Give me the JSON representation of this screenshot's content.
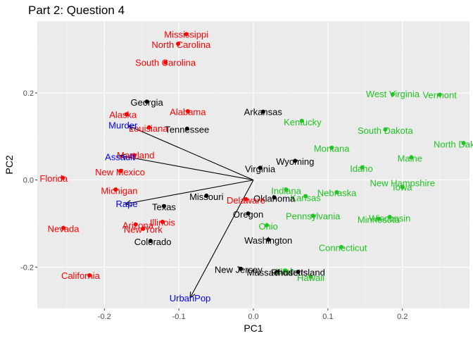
{
  "chart_data": {
    "type": "scatter",
    "title": "Part 2: Question 4",
    "xlabel": "PC1",
    "ylabel": "PC2",
    "xlim": [
      -0.29,
      0.29
    ],
    "ylim": [
      -0.295,
      0.365
    ],
    "xticks": [
      -0.2,
      -0.1,
      0.0,
      0.1,
      0.2
    ],
    "xtick_labels": [
      "-0.2",
      "-0.1",
      "0.0",
      "0.1",
      "0.2"
    ],
    "yticks": [
      -0.2,
      0.0,
      0.2
    ],
    "ytick_labels": [
      "-0.2",
      "0.0",
      "0.2"
    ],
    "grid": true,
    "legend": "none",
    "colors": {
      "red": "#ff0000",
      "black": "#000000",
      "green": "#22c322",
      "blue": "#0000ff",
      "panel": "#ebebeb",
      "grid_major": "#ffffff",
      "grid_minor": "#f5f5f5"
    },
    "arrow_origin": [
      0.0,
      0.0
    ],
    "arrows": [
      {
        "name": "Murder",
        "x": -0.168,
        "y": 0.125,
        "tx": -0.175,
        "ty": 0.126,
        "color": "blue"
      },
      {
        "name": "Assault",
        "x": -0.179,
        "y": 0.056,
        "tx": -0.179,
        "ty": 0.054,
        "color": "blue"
      },
      {
        "name": "Rape",
        "x": -0.172,
        "y": -0.055,
        "tx": -0.17,
        "ty": -0.054,
        "color": "blue"
      },
      {
        "name": "UrbanPop",
        "x": -0.085,
        "y": -0.271,
        "tx": -0.085,
        "ty": -0.271,
        "color": "blue"
      }
    ],
    "points": [
      {
        "label": "Mississippi",
        "x": -0.09,
        "y": 0.335,
        "tx": -0.09,
        "ty": 0.335,
        "color": "red"
      },
      {
        "label": "North Carolina",
        "x": -0.101,
        "y": 0.313,
        "tx": -0.097,
        "ty": 0.312,
        "color": "red"
      },
      {
        "label": "South Carolina",
        "x": -0.118,
        "y": 0.27,
        "tx": -0.118,
        "ty": 0.27,
        "color": "red"
      },
      {
        "label": "Georgia",
        "x": -0.143,
        "y": 0.18,
        "tx": -0.143,
        "ty": 0.179,
        "color": "black"
      },
      {
        "label": "Alabama",
        "x": -0.088,
        "y": 0.158,
        "tx": -0.088,
        "ty": 0.157,
        "color": "red"
      },
      {
        "label": "Alaska",
        "x": -0.17,
        "y": 0.151,
        "tx": -0.175,
        "ty": 0.151,
        "color": "red"
      },
      {
        "label": "Arkansas",
        "x": 0.013,
        "y": 0.157,
        "tx": 0.013,
        "ty": 0.157,
        "color": "black"
      },
      {
        "label": "Louisiana",
        "x": -0.14,
        "y": 0.121,
        "tx": -0.141,
        "ty": 0.119,
        "color": "red"
      },
      {
        "label": "Tennessee",
        "x": -0.089,
        "y": 0.118,
        "tx": -0.089,
        "ty": 0.117,
        "color": "black"
      },
      {
        "label": "Kentucky",
        "x": 0.065,
        "y": 0.136,
        "tx": 0.066,
        "ty": 0.134,
        "color": "green"
      },
      {
        "label": "West Virginia",
        "x": 0.187,
        "y": 0.197,
        "tx": 0.187,
        "ty": 0.198,
        "color": "green"
      },
      {
        "label": "Vermont",
        "x": 0.25,
        "y": 0.196,
        "tx": 0.25,
        "ty": 0.196,
        "color": "green"
      },
      {
        "label": "South Dakota",
        "x": 0.177,
        "y": 0.116,
        "tx": 0.177,
        "ty": 0.114,
        "color": "green"
      },
      {
        "label": "North Dakota",
        "x": 0.282,
        "y": 0.085,
        "tx": 0.278,
        "ty": 0.083,
        "color": "green"
      },
      {
        "label": "Montana",
        "x": 0.105,
        "y": 0.074,
        "tx": 0.105,
        "ty": 0.073,
        "color": "green"
      },
      {
        "label": "Maine",
        "x": 0.212,
        "y": 0.052,
        "tx": 0.21,
        "ty": 0.05,
        "color": "green"
      },
      {
        "label": "Wyoming",
        "x": 0.056,
        "y": 0.044,
        "tx": 0.056,
        "ty": 0.043,
        "color": "black"
      },
      {
        "label": "Maryland",
        "x": -0.16,
        "y": 0.057,
        "tx": -0.158,
        "ty": 0.058,
        "color": "red"
      },
      {
        "label": "Idaho",
        "x": 0.146,
        "y": 0.029,
        "tx": 0.145,
        "ty": 0.027,
        "color": "green"
      },
      {
        "label": "Virginia",
        "x": 0.009,
        "y": 0.028,
        "tx": 0.009,
        "ty": 0.026,
        "color": "black"
      },
      {
        "label": "New Mexico",
        "x": -0.178,
        "y": 0.021,
        "tx": -0.179,
        "ty": 0.019,
        "color": "red"
      },
      {
        "label": "Florida",
        "x": -0.256,
        "y": 0.005,
        "tx": -0.268,
        "ty": 0.004,
        "color": "red"
      },
      {
        "label": "New Hampshire",
        "x": 0.2,
        "y": -0.016,
        "tx": 0.2,
        "ty": -0.006,
        "color": "green"
      },
      {
        "label": "Iowa",
        "x": 0.2,
        "y": -0.016,
        "tx": 0.2,
        "ty": -0.016,
        "color": "green"
      },
      {
        "label": "Michigan",
        "x": -0.185,
        "y": -0.022,
        "tx": -0.18,
        "ty": -0.024,
        "color": "red"
      },
      {
        "label": "Indiana",
        "x": 0.044,
        "y": -0.022,
        "tx": 0.044,
        "ty": -0.024,
        "color": "green"
      },
      {
        "label": "Nebraska",
        "x": 0.112,
        "y": -0.028,
        "tx": 0.112,
        "ty": -0.029,
        "color": "green"
      },
      {
        "label": "Kansas",
        "x": 0.07,
        "y": -0.037,
        "tx": 0.07,
        "ty": -0.04,
        "color": "green"
      },
      {
        "label": "Missouri",
        "x": -0.063,
        "y": -0.036,
        "tx": -0.063,
        "ty": -0.038,
        "color": "black"
      },
      {
        "label": "Oklahoma",
        "x": 0.028,
        "y": -0.04,
        "tx": 0.028,
        "ty": -0.042,
        "color": "black"
      },
      {
        "label": "Delaware",
        "x": -0.01,
        "y": -0.044,
        "tx": -0.01,
        "ty": -0.046,
        "color": "red"
      },
      {
        "label": "Texas",
        "x": -0.12,
        "y": -0.06,
        "tx": -0.12,
        "ty": -0.061,
        "color": "black"
      },
      {
        "label": "Oregon",
        "x": -0.007,
        "y": -0.077,
        "tx": -0.007,
        "ty": -0.078,
        "color": "black"
      },
      {
        "label": "Pennsylvania",
        "x": 0.08,
        "y": -0.082,
        "tx": 0.08,
        "ty": -0.082,
        "color": "green"
      },
      {
        "label": "Wisconsin",
        "x": 0.183,
        "y": -0.085,
        "tx": 0.183,
        "ty": -0.087,
        "color": "green"
      },
      {
        "label": "Minnesota",
        "x": 0.168,
        "y": -0.089,
        "tx": 0.168,
        "ty": -0.09,
        "color": "green"
      },
      {
        "label": "Illinois",
        "x": -0.122,
        "y": -0.096,
        "tx": -0.122,
        "ty": -0.097,
        "color": "red"
      },
      {
        "label": "Arizona",
        "x": -0.158,
        "y": -0.102,
        "tx": -0.155,
        "ty": -0.103,
        "color": "red"
      },
      {
        "label": "Ohio",
        "x": 0.018,
        "y": -0.104,
        "tx": 0.02,
        "ty": -0.106,
        "color": "green"
      },
      {
        "label": "Nevada",
        "x": -0.255,
        "y": -0.11,
        "tx": -0.255,
        "ty": -0.111,
        "color": "red"
      },
      {
        "label": "New York",
        "x": -0.148,
        "y": -0.112,
        "tx": -0.148,
        "ty": -0.113,
        "color": "red"
      },
      {
        "label": "Washington",
        "x": 0.02,
        "y": -0.137,
        "tx": 0.02,
        "ty": -0.138,
        "color": "black"
      },
      {
        "label": "Colorado",
        "x": -0.138,
        "y": -0.14,
        "tx": -0.135,
        "ty": -0.141,
        "color": "black"
      },
      {
        "label": "Connecticut",
        "x": 0.118,
        "y": -0.154,
        "tx": 0.12,
        "ty": -0.155,
        "color": "green"
      },
      {
        "label": "California",
        "x": -0.22,
        "y": -0.219,
        "tx": -0.232,
        "ty": -0.219,
        "color": "red"
      },
      {
        "label": "New Jersey",
        "x": -0.017,
        "y": -0.204,
        "tx": -0.02,
        "ty": -0.205,
        "color": "black"
      },
      {
        "label": "Utah",
        "x": 0.043,
        "y": -0.208,
        "tx": 0.043,
        "ty": -0.209,
        "color": "green"
      },
      {
        "label": "Massachusetts",
        "x": 0.032,
        "y": -0.211,
        "tx": 0.032,
        "ty": -0.212,
        "color": "black"
      },
      {
        "label": "Rhode Island",
        "x": 0.06,
        "y": -0.211,
        "tx": 0.06,
        "ty": -0.212,
        "color": "black"
      },
      {
        "label": "Hawaii",
        "x": 0.077,
        "y": -0.222,
        "tx": 0.077,
        "ty": -0.224,
        "color": "green"
      }
    ]
  }
}
